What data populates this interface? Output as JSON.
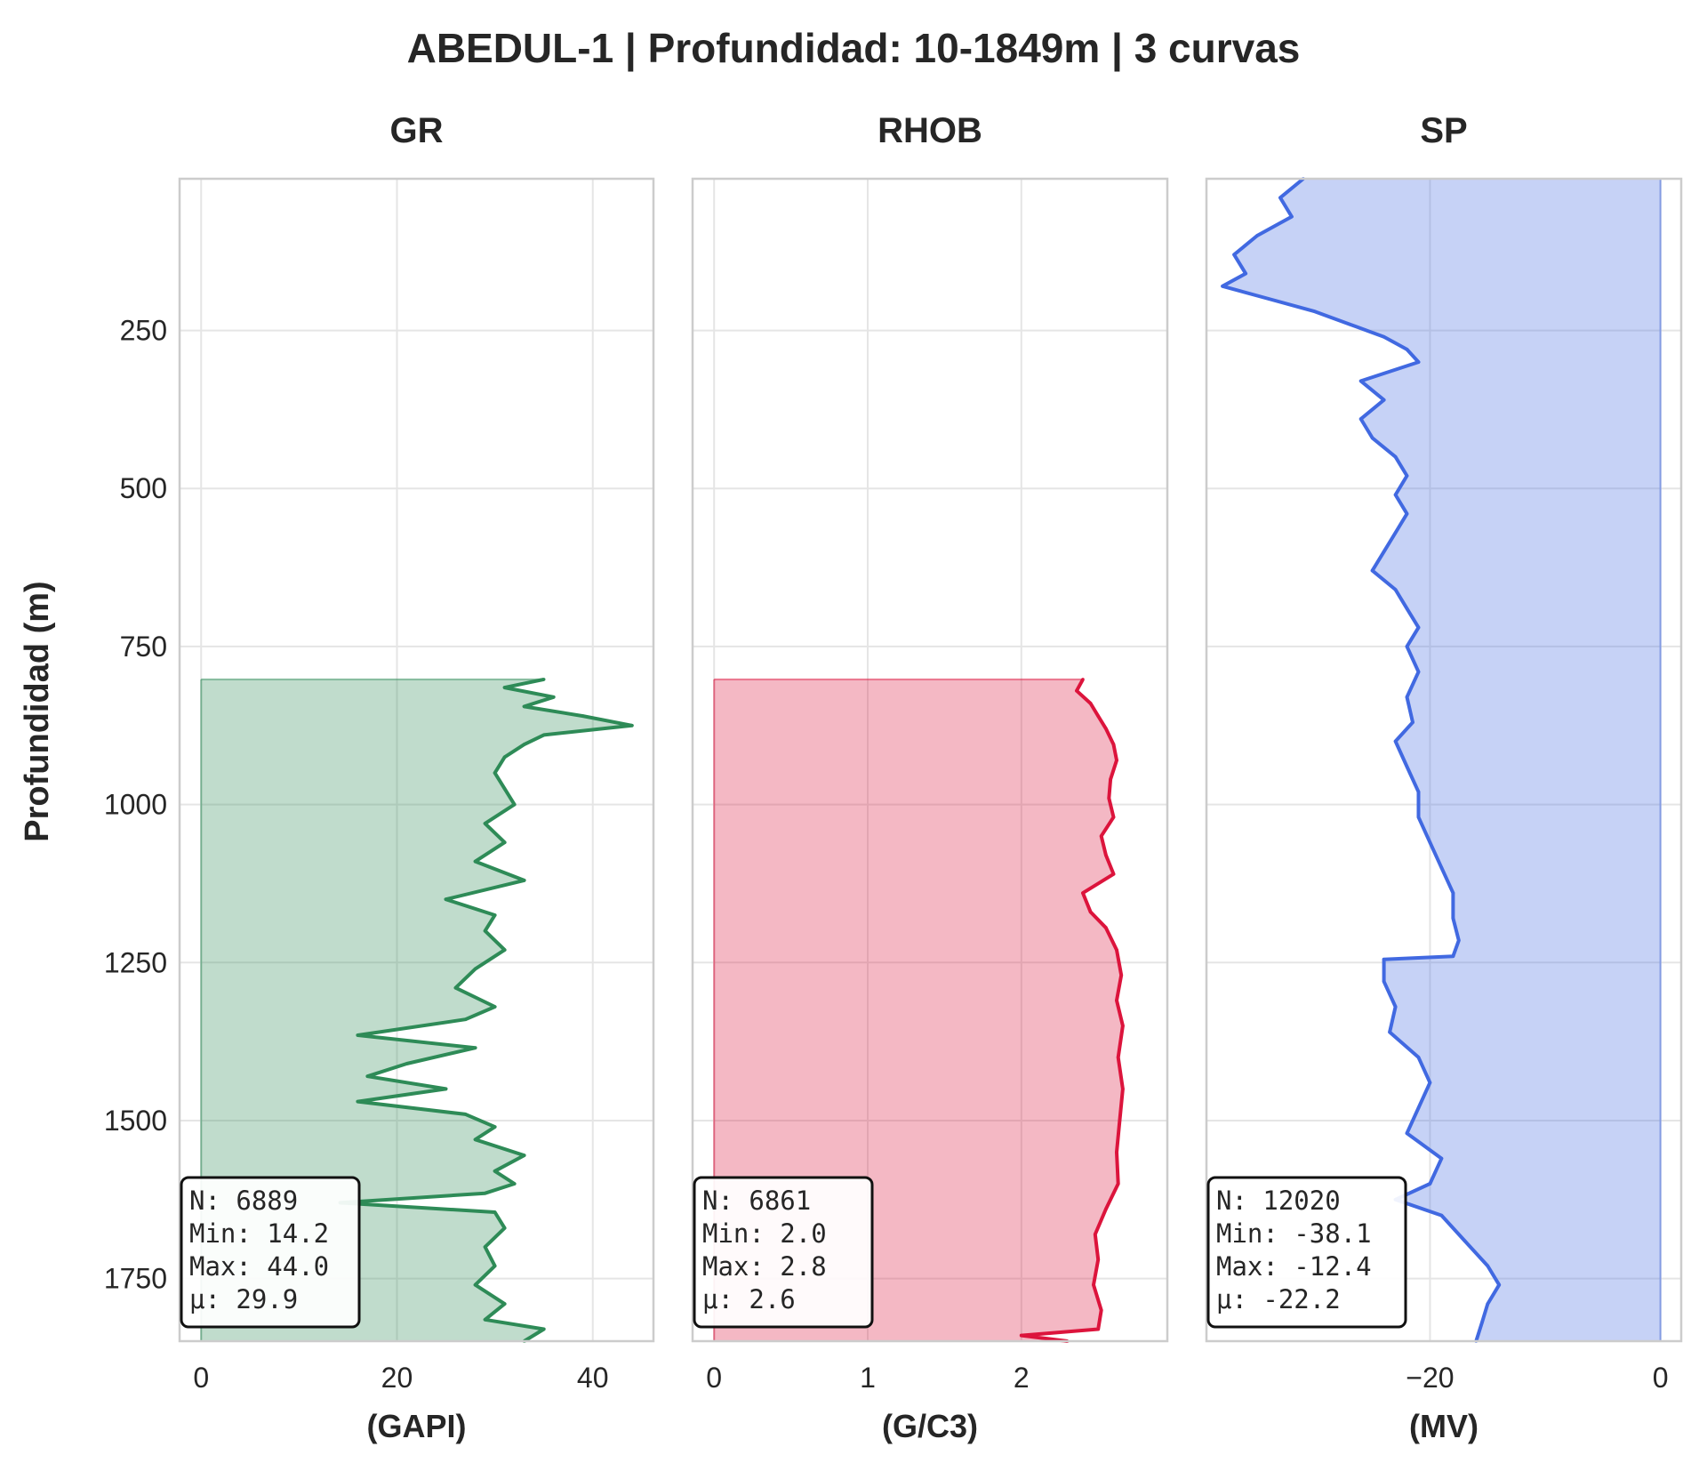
{
  "figure_title": "ABEDUL-1 | Profundidad: 10-1849m | 3 curvas",
  "y_axis_label": "Profundidad (m)",
  "chart_data": [
    {
      "type": "line",
      "title": "GR",
      "xlabel": "(GAPI)",
      "ylabel": "Profundidad (m)",
      "color": "#2e8b57",
      "fill_color": "#2e8b57",
      "xlim": [
        -2.2,
        46.2
      ],
      "ylim": [
        1849,
        10
      ],
      "y_inverted": true,
      "x_ticks": [
        0,
        20,
        40
      ],
      "y_ticks": [
        250,
        500,
        750,
        1000,
        1250,
        1500,
        1750
      ],
      "grid": true,
      "fill_to": 0,
      "depth_range": [
        802,
        1849
      ],
      "stats": [
        "N: 6889",
        "Min: 14.2",
        "Max: 44.0",
        "μ: 29.9"
      ],
      "points": [
        {
          "depth": 802,
          "value": 35
        },
        {
          "depth": 815,
          "value": 31
        },
        {
          "depth": 830,
          "value": 36
        },
        {
          "depth": 845,
          "value": 33
        },
        {
          "depth": 860,
          "value": 39
        },
        {
          "depth": 875,
          "value": 44
        },
        {
          "depth": 890,
          "value": 35
        },
        {
          "depth": 905,
          "value": 33
        },
        {
          "depth": 925,
          "value": 31
        },
        {
          "depth": 950,
          "value": 30
        },
        {
          "depth": 975,
          "value": 31
        },
        {
          "depth": 1000,
          "value": 32
        },
        {
          "depth": 1030,
          "value": 29
        },
        {
          "depth": 1060,
          "value": 31
        },
        {
          "depth": 1090,
          "value": 28
        },
        {
          "depth": 1120,
          "value": 33
        },
        {
          "depth": 1150,
          "value": 25
        },
        {
          "depth": 1175,
          "value": 30
        },
        {
          "depth": 1200,
          "value": 29
        },
        {
          "depth": 1230,
          "value": 31
        },
        {
          "depth": 1260,
          "value": 28
        },
        {
          "depth": 1290,
          "value": 26
        },
        {
          "depth": 1320,
          "value": 30
        },
        {
          "depth": 1340,
          "value": 27
        },
        {
          "depth": 1365,
          "value": 16
        },
        {
          "depth": 1385,
          "value": 28
        },
        {
          "depth": 1410,
          "value": 21
        },
        {
          "depth": 1430,
          "value": 17
        },
        {
          "depth": 1450,
          "value": 25
        },
        {
          "depth": 1470,
          "value": 16
        },
        {
          "depth": 1490,
          "value": 27
        },
        {
          "depth": 1510,
          "value": 30
        },
        {
          "depth": 1530,
          "value": 28
        },
        {
          "depth": 1555,
          "value": 33
        },
        {
          "depth": 1580,
          "value": 30
        },
        {
          "depth": 1600,
          "value": 32
        },
        {
          "depth": 1615,
          "value": 29
        },
        {
          "depth": 1630,
          "value": 14.2
        },
        {
          "depth": 1645,
          "value": 30
        },
        {
          "depth": 1670,
          "value": 31
        },
        {
          "depth": 1700,
          "value": 29
        },
        {
          "depth": 1730,
          "value": 30
        },
        {
          "depth": 1760,
          "value": 28
        },
        {
          "depth": 1790,
          "value": 31
        },
        {
          "depth": 1815,
          "value": 29
        },
        {
          "depth": 1830,
          "value": 35
        },
        {
          "depth": 1849,
          "value": 33
        }
      ]
    },
    {
      "type": "line",
      "title": "RHOB",
      "xlabel": "(G/C3)",
      "ylabel": "",
      "color": "#dc143c",
      "fill_color": "#dc143c",
      "xlim": [
        -0.14,
        2.95
      ],
      "ylim": [
        1849,
        10
      ],
      "y_inverted": true,
      "x_ticks": [
        0,
        1,
        2
      ],
      "y_ticks": [
        250,
        500,
        750,
        1000,
        1250,
        1500,
        1750
      ],
      "grid": true,
      "fill_to": 0,
      "depth_range": [
        802,
        1849
      ],
      "stats": [
        "N: 6861",
        "Min: 2.0",
        "Max: 2.8",
        "μ: 2.6"
      ],
      "points": [
        {
          "depth": 802,
          "value": 2.4
        },
        {
          "depth": 820,
          "value": 2.36
        },
        {
          "depth": 840,
          "value": 2.45
        },
        {
          "depth": 860,
          "value": 2.5
        },
        {
          "depth": 880,
          "value": 2.55
        },
        {
          "depth": 905,
          "value": 2.6
        },
        {
          "depth": 930,
          "value": 2.62
        },
        {
          "depth": 960,
          "value": 2.58
        },
        {
          "depth": 990,
          "value": 2.57
        },
        {
          "depth": 1020,
          "value": 2.6
        },
        {
          "depth": 1050,
          "value": 2.52
        },
        {
          "depth": 1080,
          "value": 2.55
        },
        {
          "depth": 1110,
          "value": 2.6
        },
        {
          "depth": 1140,
          "value": 2.4
        },
        {
          "depth": 1170,
          "value": 2.45
        },
        {
          "depth": 1195,
          "value": 2.55
        },
        {
          "depth": 1230,
          "value": 2.62
        },
        {
          "depth": 1270,
          "value": 2.65
        },
        {
          "depth": 1310,
          "value": 2.62
        },
        {
          "depth": 1350,
          "value": 2.66
        },
        {
          "depth": 1400,
          "value": 2.63
        },
        {
          "depth": 1450,
          "value": 2.66
        },
        {
          "depth": 1500,
          "value": 2.64
        },
        {
          "depth": 1550,
          "value": 2.62
        },
        {
          "depth": 1600,
          "value": 2.63
        },
        {
          "depth": 1640,
          "value": 2.55
        },
        {
          "depth": 1680,
          "value": 2.48
        },
        {
          "depth": 1720,
          "value": 2.5
        },
        {
          "depth": 1760,
          "value": 2.47
        },
        {
          "depth": 1800,
          "value": 2.52
        },
        {
          "depth": 1830,
          "value": 2.5
        },
        {
          "depth": 1840,
          "value": 2.0
        },
        {
          "depth": 1849,
          "value": 2.3
        }
      ]
    },
    {
      "type": "line",
      "title": "SP",
      "xlabel": "(MV)",
      "ylabel": "",
      "color": "#4169e1",
      "fill_color": "#4169e1",
      "xlim": [
        -39.4,
        1.8
      ],
      "ylim": [
        1849,
        10
      ],
      "y_inverted": true,
      "x_ticks": [
        -20,
        0
      ],
      "x_tick_labels": [
        "−20",
        "0"
      ],
      "y_ticks": [
        250,
        500,
        750,
        1000,
        1250,
        1500,
        1750
      ],
      "grid": true,
      "fill_to": 0,
      "depth_range": [
        10,
        1849
      ],
      "stats": [
        "N: 12020",
        "Min: -38.1",
        "Max: -12.4",
        "μ: -22.2"
      ],
      "points": [
        {
          "depth": 10,
          "value": -31
        },
        {
          "depth": 40,
          "value": -33
        },
        {
          "depth": 70,
          "value": -32
        },
        {
          "depth": 100,
          "value": -35
        },
        {
          "depth": 130,
          "value": -37
        },
        {
          "depth": 160,
          "value": -36
        },
        {
          "depth": 180,
          "value": -38
        },
        {
          "depth": 200,
          "value": -34
        },
        {
          "depth": 220,
          "value": -30
        },
        {
          "depth": 240,
          "value": -27
        },
        {
          "depth": 260,
          "value": -24
        },
        {
          "depth": 280,
          "value": -22
        },
        {
          "depth": 300,
          "value": -21
        },
        {
          "depth": 330,
          "value": -26
        },
        {
          "depth": 360,
          "value": -24
        },
        {
          "depth": 390,
          "value": -26
        },
        {
          "depth": 420,
          "value": -25
        },
        {
          "depth": 450,
          "value": -23
        },
        {
          "depth": 480,
          "value": -22
        },
        {
          "depth": 510,
          "value": -23
        },
        {
          "depth": 540,
          "value": -22
        },
        {
          "depth": 570,
          "value": -23
        },
        {
          "depth": 600,
          "value": -24
        },
        {
          "depth": 630,
          "value": -25
        },
        {
          "depth": 660,
          "value": -23
        },
        {
          "depth": 690,
          "value": -22
        },
        {
          "depth": 720,
          "value": -21
        },
        {
          "depth": 750,
          "value": -22
        },
        {
          "depth": 790,
          "value": -21
        },
        {
          "depth": 830,
          "value": -22
        },
        {
          "depth": 870,
          "value": -21.5
        },
        {
          "depth": 900,
          "value": -23
        },
        {
          "depth": 940,
          "value": -22
        },
        {
          "depth": 980,
          "value": -21
        },
        {
          "depth": 1020,
          "value": -21
        },
        {
          "depth": 1060,
          "value": -20
        },
        {
          "depth": 1100,
          "value": -19
        },
        {
          "depth": 1140,
          "value": -18
        },
        {
          "depth": 1180,
          "value": -18
        },
        {
          "depth": 1215,
          "value": -17.5
        },
        {
          "depth": 1240,
          "value": -18
        },
        {
          "depth": 1245,
          "value": -24
        },
        {
          "depth": 1280,
          "value": -24
        },
        {
          "depth": 1320,
          "value": -23
        },
        {
          "depth": 1360,
          "value": -23.5
        },
        {
          "depth": 1400,
          "value": -21
        },
        {
          "depth": 1440,
          "value": -20
        },
        {
          "depth": 1480,
          "value": -21
        },
        {
          "depth": 1520,
          "value": -22
        },
        {
          "depth": 1560,
          "value": -19
        },
        {
          "depth": 1600,
          "value": -20
        },
        {
          "depth": 1625,
          "value": -23
        },
        {
          "depth": 1650,
          "value": -19
        },
        {
          "depth": 1690,
          "value": -17
        },
        {
          "depth": 1730,
          "value": -15
        },
        {
          "depth": 1760,
          "value": -14
        },
        {
          "depth": 1790,
          "value": -15
        },
        {
          "depth": 1820,
          "value": -15.5
        },
        {
          "depth": 1849,
          "value": -16
        }
      ]
    }
  ]
}
